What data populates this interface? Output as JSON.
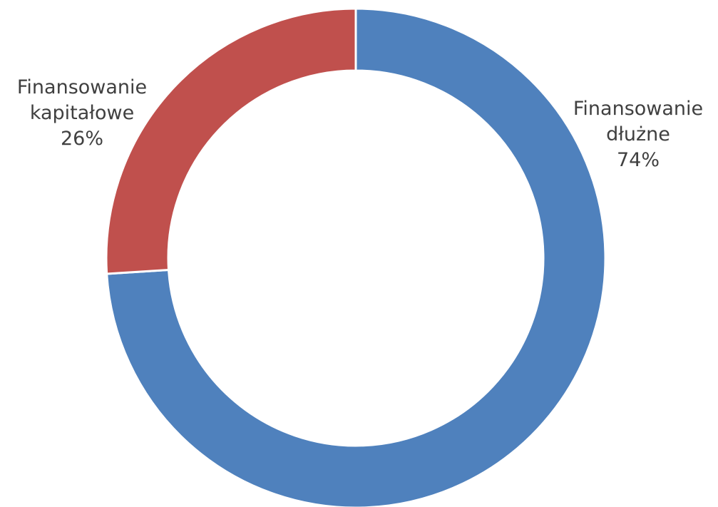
{
  "chart_data": {
    "type": "donut",
    "categories": [
      "Finansowanie dłużne",
      "Finansowanie kapitałowe"
    ],
    "values": [
      74,
      26
    ],
    "value_labels": [
      "74%",
      "26%"
    ],
    "colors": [
      "#4f81bd",
      "#c0504d"
    ]
  }
}
